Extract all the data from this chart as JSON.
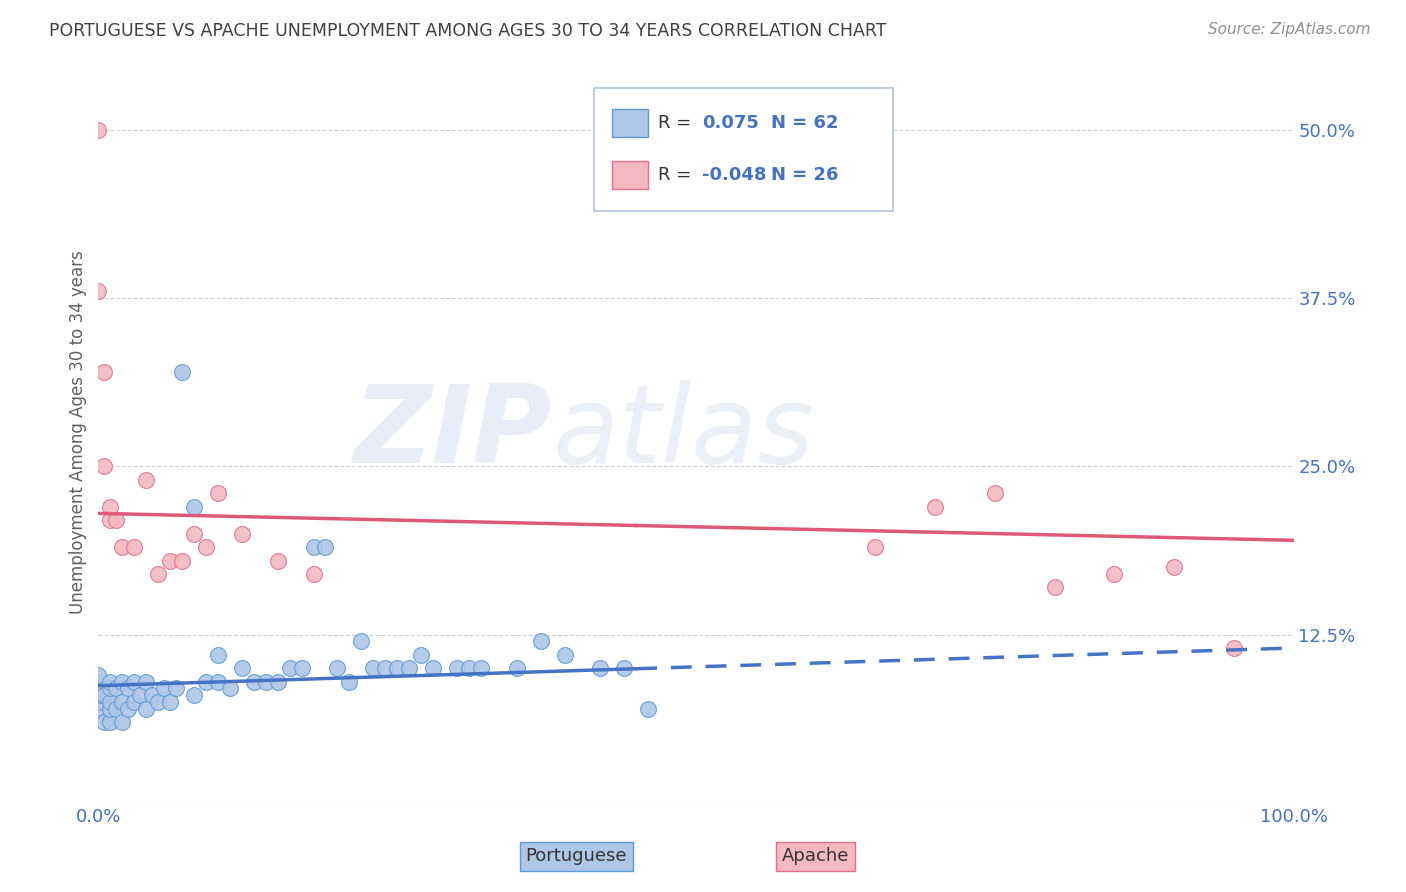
{
  "title": "PORTUGUESE VS APACHE UNEMPLOYMENT AMONG AGES 30 TO 34 YEARS CORRELATION CHART",
  "source": "Source: ZipAtlas.com",
  "ylabel": "Unemployment Among Ages 30 to 34 years",
  "yticks": [
    0.0,
    0.125,
    0.25,
    0.375,
    0.5
  ],
  "ytick_labels": [
    "",
    "12.5%",
    "25.0%",
    "37.5%",
    "50.0%"
  ],
  "xtick_labels": [
    "0.0%",
    "100.0%"
  ],
  "xlim": [
    0.0,
    1.0
  ],
  "ylim": [
    0.0,
    0.55
  ],
  "portuguese_color": "#aec6e8",
  "apache_color": "#f4b8c1",
  "portuguese_edge_color": "#5b9bd5",
  "apache_edge_color": "#e07090",
  "portuguese_line_color": "#4472c4",
  "apache_line_color": "#e05878",
  "title_color": "#404040",
  "source_color": "#909090",
  "background_color": "#ffffff",
  "grid_color": "#d0d0d0",
  "legend_color": "#4472c4",
  "portuguese_x": [
    0.0,
    0.0,
    0.0,
    0.0,
    0.0,
    0.005,
    0.005,
    0.01,
    0.01,
    0.01,
    0.01,
    0.01,
    0.015,
    0.015,
    0.02,
    0.02,
    0.02,
    0.025,
    0.025,
    0.03,
    0.03,
    0.035,
    0.04,
    0.04,
    0.045,
    0.05,
    0.055,
    0.06,
    0.065,
    0.07,
    0.08,
    0.08,
    0.09,
    0.1,
    0.1,
    0.11,
    0.12,
    0.13,
    0.14,
    0.15,
    0.16,
    0.17,
    0.18,
    0.19,
    0.2,
    0.21,
    0.22,
    0.23,
    0.24,
    0.25,
    0.26,
    0.27,
    0.28,
    0.3,
    0.31,
    0.32,
    0.35,
    0.37,
    0.39,
    0.42,
    0.44,
    0.46
  ],
  "portuguese_y": [
    0.065,
    0.075,
    0.08,
    0.09,
    0.095,
    0.06,
    0.08,
    0.06,
    0.07,
    0.075,
    0.085,
    0.09,
    0.07,
    0.085,
    0.06,
    0.075,
    0.09,
    0.07,
    0.085,
    0.075,
    0.09,
    0.08,
    0.07,
    0.09,
    0.08,
    0.075,
    0.085,
    0.075,
    0.085,
    0.32,
    0.08,
    0.22,
    0.09,
    0.09,
    0.11,
    0.085,
    0.1,
    0.09,
    0.09,
    0.09,
    0.1,
    0.1,
    0.19,
    0.19,
    0.1,
    0.09,
    0.12,
    0.1,
    0.1,
    0.1,
    0.1,
    0.11,
    0.1,
    0.1,
    0.1,
    0.1,
    0.1,
    0.12,
    0.11,
    0.1,
    0.1,
    0.07
  ],
  "apache_x": [
    0.0,
    0.0,
    0.005,
    0.005,
    0.01,
    0.01,
    0.015,
    0.02,
    0.03,
    0.04,
    0.05,
    0.06,
    0.07,
    0.08,
    0.09,
    0.1,
    0.12,
    0.15,
    0.18,
    0.65,
    0.7,
    0.75,
    0.8,
    0.85,
    0.9,
    0.95
  ],
  "apache_y": [
    0.5,
    0.38,
    0.32,
    0.25,
    0.22,
    0.21,
    0.21,
    0.19,
    0.19,
    0.24,
    0.17,
    0.18,
    0.18,
    0.2,
    0.19,
    0.23,
    0.2,
    0.18,
    0.17,
    0.19,
    0.22,
    0.23,
    0.16,
    0.17,
    0.175,
    0.115
  ],
  "port_line_x0": 0.0,
  "port_line_x1": 1.0,
  "port_line_y0": 0.087,
  "port_line_y1": 0.115,
  "port_line_solid_end": 0.45,
  "apache_line_x0": 0.0,
  "apache_line_x1": 1.0,
  "apache_line_y0": 0.215,
  "apache_line_y1": 0.195,
  "apache_line_solid_end": 0.45
}
